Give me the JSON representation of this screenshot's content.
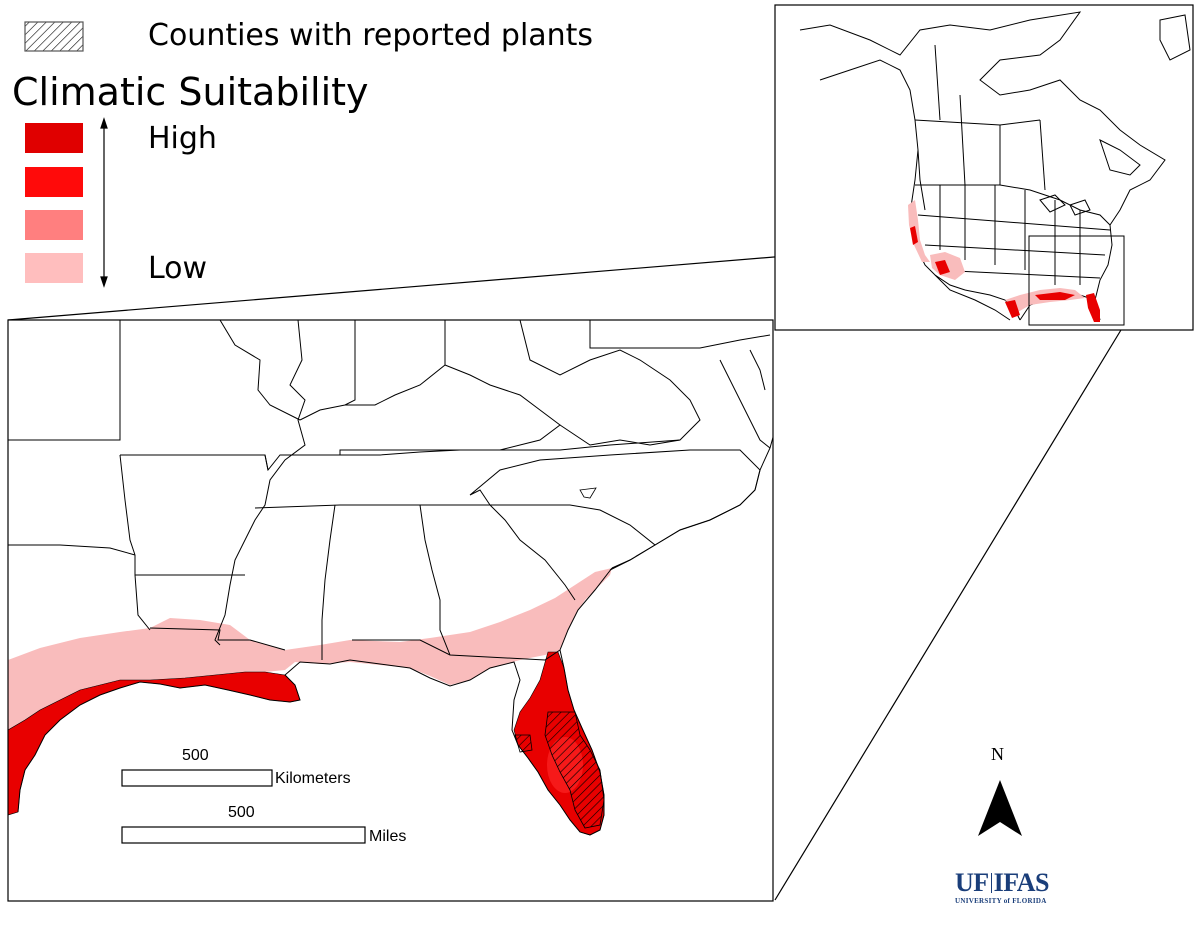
{
  "legend": {
    "county_label": "Counties with reported plants",
    "title": "Climatic Suitability",
    "high_label": "High",
    "low_label": "Low",
    "classes": [
      {
        "level": "very-high",
        "color": "#e00000"
      },
      {
        "level": "high",
        "color": "#ff0a0a"
      },
      {
        "level": "medium",
        "color": "#ff7f7f"
      },
      {
        "level": "low",
        "color": "#ffbebe"
      }
    ]
  },
  "scale_bars": {
    "km_value": "500",
    "km_unit": "Kilometers",
    "mi_value": "500",
    "mi_unit": "Miles"
  },
  "north_arrow": {
    "label": "N"
  },
  "logo": {
    "uf": "UF",
    "ifas": "IFAS",
    "subtitle": "UNIVERSITY of FLORIDA",
    "color": "#1a3e7a"
  },
  "colors": {
    "suitability_low": "#f9bcbc",
    "suitability_high": "#e80000",
    "border": "#000000"
  }
}
